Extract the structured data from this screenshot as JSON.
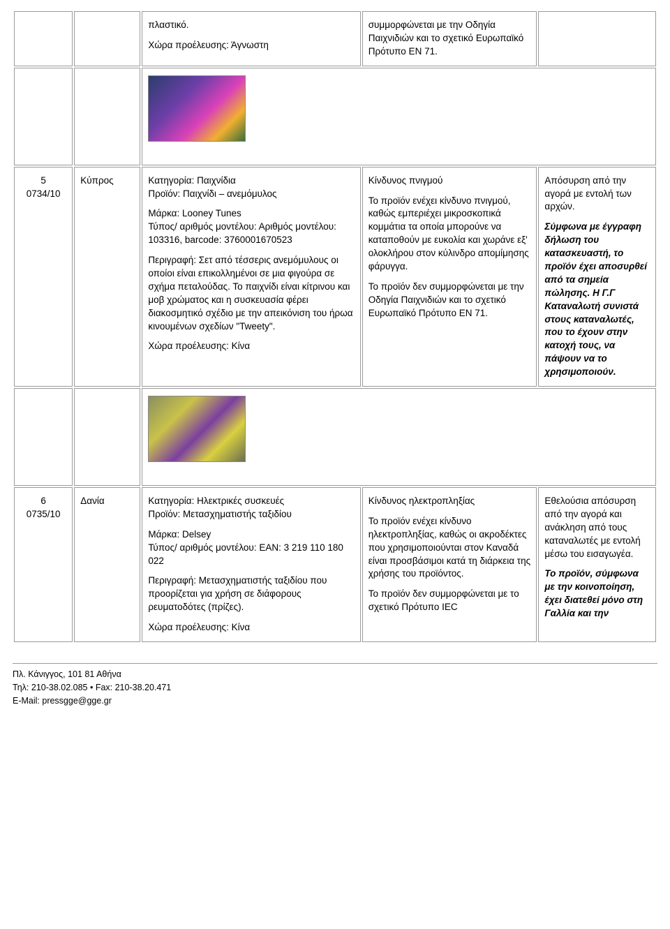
{
  "row_top": {
    "desc_p1": "πλαστικό.",
    "desc_p2": "Χώρα προέλευσης: Άγνωστη",
    "risk": "συμμορφώνεται με την Οδηγία Παιχνιδιών και το σχετικό Ευρωπαϊκό Πρότυπο EN 71."
  },
  "row5": {
    "idx_num": "5",
    "idx_ref": "0734/10",
    "country": "Κύπρος",
    "desc_top": "Κατηγορία: Παιχνίδια\nΠροϊόν: Παιχνίδι – ανεμόμυλος",
    "desc_brand": "Μάρκα: Looney Tunes\nΤύπος/ αριθμός μοντέλου: Αριθμός μοντέλου: 103316, barcode: 3760001670523",
    "desc_body": "Περιγραφή: Σετ από τέσσερις ανεμόμυλους οι οποίοι είναι επικολλημένοι σε μια φιγούρα σε σχήμα πεταλούδας. Το παιχνίδι είναι κίτρινου και μοβ χρώματος και η συσκευασία φέρει διακοσμητικό σχέδιο με την απεικόνιση του ήρωα κινουμένων σχεδίων \"Tweety\".",
    "desc_origin": "Χώρα προέλευσης: Κίνα",
    "risk_title": "Κίνδυνος πνιγμού",
    "risk_body": "Το προϊόν ενέχει κίνδυνο πνιγμού, καθώς εμπεριέχει μικροσκοπικά κομμάτια τα οποία μπορούνε να καταποθούν με ευκολία και χωράνε εξ' ολοκλήρου στον κύλινδρο απομίμησης φάρυγγα.",
    "risk_std": "Το προϊόν δεν συμμορφώνεται με την Οδηγία Παιχνιδιών και το σχετικό Ευρωπαϊκό Πρότυπο EN 71.",
    "act_top": "Απόσυρση από την αγορά με εντολή των αρχών.",
    "act_bold": "Σύμφωνα με έγγραφη δήλωση του κατασκευαστή, το προϊόν έχει αποσυρθεί από τα σημεία πώλησης. Η Γ.Γ Καταναλωτή συνιστά στους καταναλωτές, που το έχουν στην κατοχή τους, να πάψουν να το χρησιμοποιούν."
  },
  "row6": {
    "idx_num": "6",
    "idx_ref": "0735/10",
    "country": "Δανία",
    "desc_top": "Κατηγορία: Ηλεκτρικές συσκευές\nΠροϊόν: Μετασχηματιστής ταξιδίου",
    "desc_brand": "Μάρκα: Delsey\nΤύπος/ αριθμός μοντέλου: EAN: 3 219 110 180 022",
    "desc_body": "Περιγραφή: Μετασχηματιστής ταξιδίου που προορίζεται για χρήση σε διάφορους ρευματοδότες (πρίζες).",
    "desc_origin": "Χώρα προέλευσης: Κίνα",
    "risk_title": "Κίνδυνος ηλεκτροπληξίας",
    "risk_body": "Το προϊόν ενέχει κίνδυνο ηλεκτροπληξίας, καθώς οι ακροδέκτες που χρησιμοποιούνται στον Καναδά είναι προσβάσιμοι κατά τη διάρκεια της χρήσης του προϊόντος.",
    "risk_std": "Το προϊόν δεν συμμορφώνεται με το σχετικό Πρότυπο IEC",
    "act_top": "Εθελούσια απόσυρση από την αγορά και ανάκληση από τους καταναλωτές με εντολή μέσω του εισαγωγέα.",
    "act_bold": "Το προϊόν, σύμφωνα με την κοινοποίηση, έχει διατεθεί μόνο στη Γαλλία και την"
  },
  "footer": {
    "l1": "Πλ. Κάνιγγος, 101 81  Αθήνα",
    "l2": "Τηλ: 210-38.02.085  •  Fax: 210-38.20.471",
    "l3": "E-Mail: pressgge@gge.gr"
  }
}
